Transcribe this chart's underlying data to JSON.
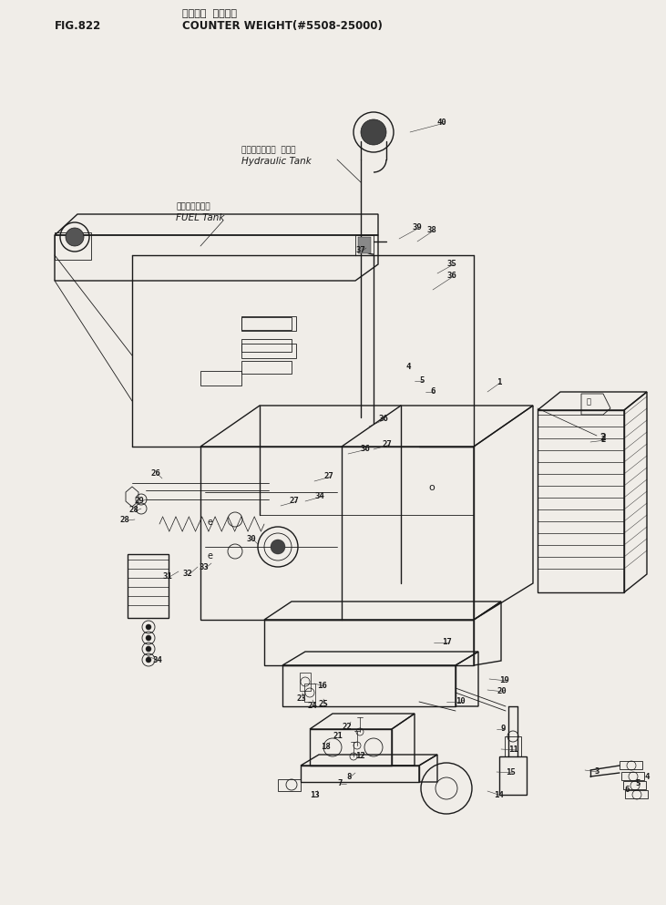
{
  "title_jp": "カウンタ ウェイト",
  "title_en": "COUNTER WEIGHT(#5508-25000)",
  "fig_label": "FIG.822",
  "bg_color": "#f5f5f0",
  "line_color": "#1a1a1a",
  "callout_hydraulic_jp": "ハイドロリック タンク",
  "callout_hydraulic_en": "Hydraulic Tank",
  "callout_fuel_jp": "フュエルタンク",
  "callout_fuel_en": "FUEL Tank"
}
